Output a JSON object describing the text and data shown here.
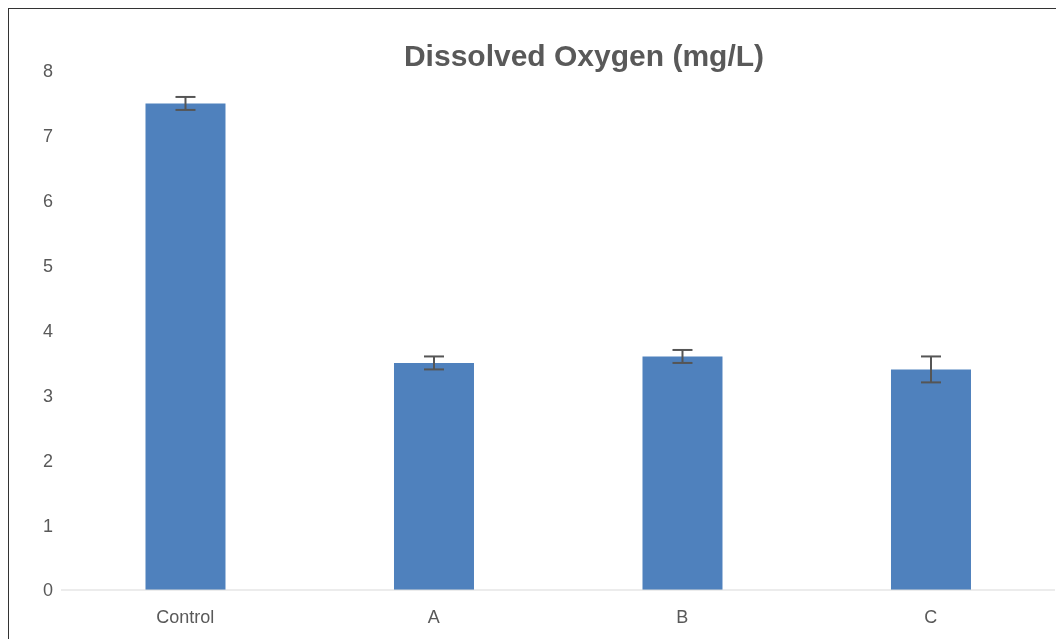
{
  "chart_data": {
    "type": "bar",
    "title": "Dissolved Oxygen (mg/L)",
    "categories": [
      "Control",
      "A",
      "B",
      "C"
    ],
    "values": [
      7.5,
      3.5,
      3.6,
      3.4
    ],
    "errors": [
      0.1,
      0.1,
      0.1,
      0.2
    ],
    "color": "#4f81bd",
    "ylim": [
      0,
      8
    ],
    "yticks": [
      0,
      1,
      2,
      3,
      4,
      5,
      6,
      7,
      8
    ],
    "grid": false,
    "legend": false
  }
}
